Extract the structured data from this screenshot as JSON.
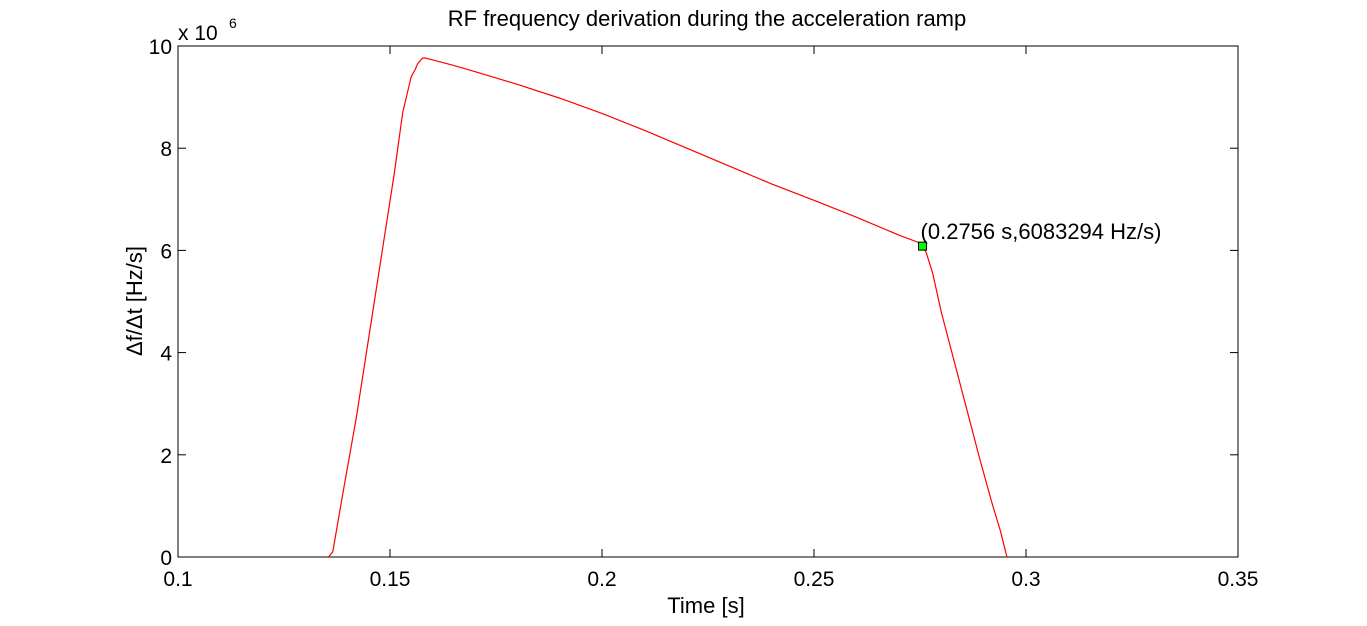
{
  "chart_data": {
    "type": "line",
    "title": "RF frequency derivation during the acceleration ramp",
    "xlabel": "Time [s]",
    "ylabel": "Δf/Δt [Hz/s]",
    "xlim": [
      0.1,
      0.35
    ],
    "ylim": [
      0,
      10000000
    ],
    "x_ticks": [
      0.1,
      0.15,
      0.2,
      0.25,
      0.3,
      0.35
    ],
    "x_tick_labels": [
      "0.1",
      "0.15",
      "0.2",
      "0.25",
      "0.3",
      "0.35"
    ],
    "y_ticks": [
      0,
      2000000,
      4000000,
      6000000,
      8000000,
      10000000
    ],
    "y_tick_labels": [
      "0",
      "2",
      "4",
      "6",
      "8",
      "10"
    ],
    "y_exponent_prefix": "x 10",
    "y_exponent": "6",
    "grid": false,
    "legend": "none",
    "series": [
      {
        "color": "#ff0000",
        "x": [
          0.1355,
          0.1365,
          0.139,
          0.142,
          0.145,
          0.148,
          0.151,
          0.153,
          0.155,
          0.156,
          0.1565,
          0.157,
          0.1575,
          0.158,
          0.16,
          0.165,
          0.17,
          0.18,
          0.19,
          0.2,
          0.21,
          0.22,
          0.23,
          0.24,
          0.25,
          0.26,
          0.27,
          0.2745,
          0.2756,
          0.2765,
          0.278,
          0.28,
          0.283,
          0.286,
          0.289,
          0.292,
          0.294,
          0.2955
        ],
        "y": [
          0,
          100000,
          1300000,
          2700000,
          4300000,
          5900000,
          7500000,
          8700000,
          9400000,
          9550000,
          9650000,
          9700000,
          9750000,
          9770000,
          9730000,
          9620000,
          9500000,
          9250000,
          8980000,
          8680000,
          8350000,
          8000000,
          7650000,
          7300000,
          6980000,
          6650000,
          6300000,
          6160000,
          6083294,
          5950000,
          5550000,
          4800000,
          3850000,
          2900000,
          1950000,
          1050000,
          500000,
          0
        ]
      }
    ],
    "marker": {
      "x": 0.2756,
      "y": 6083294,
      "color": "#00ff00",
      "label": "(0.2756 s,6083294 Hz/s)"
    }
  }
}
